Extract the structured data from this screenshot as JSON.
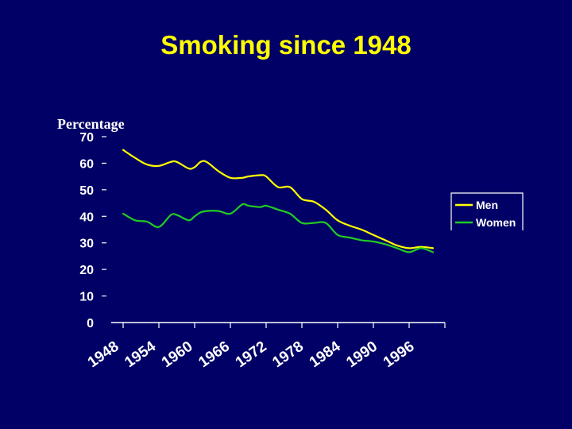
{
  "slide": {
    "title": "Smoking since 1948"
  },
  "chart_data": {
    "type": "line",
    "title": "Smoking since 1948",
    "ylabel": "Percentage",
    "xlabel": "",
    "ylim": [
      0,
      70
    ],
    "y_ticks": [
      0,
      10,
      20,
      30,
      40,
      50,
      60,
      70
    ],
    "x_ticks": [
      "1948",
      "1954",
      "1960",
      "1966",
      "1972",
      "1978",
      "1984",
      "1990",
      "1996"
    ],
    "xlim": [
      1946,
      2002
    ],
    "grid": false,
    "legend_position": "right",
    "series": [
      {
        "name": "Men",
        "color": "#ffff00",
        "points": [
          [
            1948,
            65
          ],
          [
            1950,
            62
          ],
          [
            1952,
            59.5
          ],
          [
            1954,
            59
          ],
          [
            1956,
            60.5
          ],
          [
            1957,
            60.5
          ],
          [
            1959,
            58
          ],
          [
            1960,
            58.5
          ],
          [
            1961,
            60.5
          ],
          [
            1962,
            60.5
          ],
          [
            1964,
            57
          ],
          [
            1966,
            54.5
          ],
          [
            1968,
            54.5
          ],
          [
            1969,
            55
          ],
          [
            1971,
            55.5
          ],
          [
            1972,
            55
          ],
          [
            1974,
            51
          ],
          [
            1976,
            51
          ],
          [
            1978,
            46.5
          ],
          [
            1980,
            45.5
          ],
          [
            1982,
            42.5
          ],
          [
            1984,
            38.5
          ],
          [
            1986,
            36.5
          ],
          [
            1988,
            35
          ],
          [
            1990,
            33
          ],
          [
            1992,
            31
          ],
          [
            1994,
            29
          ],
          [
            1996,
            28
          ],
          [
            1998,
            28.5
          ],
          [
            2000,
            28
          ]
        ]
      },
      {
        "name": "Women",
        "color": "#22cc22",
        "points": [
          [
            1948,
            41
          ],
          [
            1950,
            38.5
          ],
          [
            1952,
            38
          ],
          [
            1954,
            36
          ],
          [
            1956,
            40.5
          ],
          [
            1957,
            40.5
          ],
          [
            1959,
            38.5
          ],
          [
            1960,
            40
          ],
          [
            1961,
            41.5
          ],
          [
            1962,
            42
          ],
          [
            1964,
            42
          ],
          [
            1966,
            41
          ],
          [
            1968,
            44.5
          ],
          [
            1969,
            44
          ],
          [
            1971,
            43.5
          ],
          [
            1972,
            44
          ],
          [
            1974,
            42.5
          ],
          [
            1976,
            41
          ],
          [
            1978,
            37.5
          ],
          [
            1980,
            37.5
          ],
          [
            1982,
            37.5
          ],
          [
            1984,
            33
          ],
          [
            1986,
            32
          ],
          [
            1988,
            31
          ],
          [
            1990,
            30.5
          ],
          [
            1992,
            29.5
          ],
          [
            1994,
            28
          ],
          [
            1996,
            26.5
          ],
          [
            1998,
            28
          ],
          [
            2000,
            26.5
          ]
        ]
      }
    ]
  }
}
